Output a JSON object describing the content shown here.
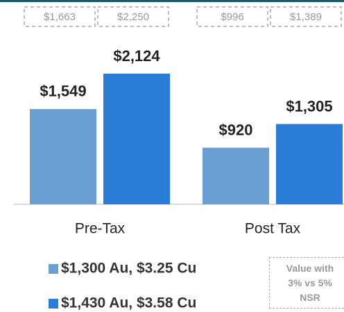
{
  "chart_data": {
    "type": "bar",
    "categories": [
      "Pre-Tax",
      "Post Tax"
    ],
    "series": [
      {
        "name": "$1,300 Au, $3.25 Cu",
        "color": "#6a9fd3",
        "values": [
          1549,
          920
        ],
        "value_labels": [
          "$1,549",
          "$920"
        ],
        "alt_values": [
          1663,
          996
        ],
        "alt_value_labels": [
          "$1,663",
          "$996"
        ]
      },
      {
        "name": "$1,430 Au, $3.58 Cu",
        "color": "#2a7dd6",
        "values": [
          2124,
          1305
        ],
        "value_labels": [
          "$2,124",
          "$1,305"
        ],
        "alt_values": [
          2250,
          1389
        ],
        "alt_value_labels": [
          "$2,250",
          "$1,389"
        ]
      }
    ],
    "annotation": [
      "Value with",
      "3% vs 5%",
      "NSR"
    ]
  }
}
